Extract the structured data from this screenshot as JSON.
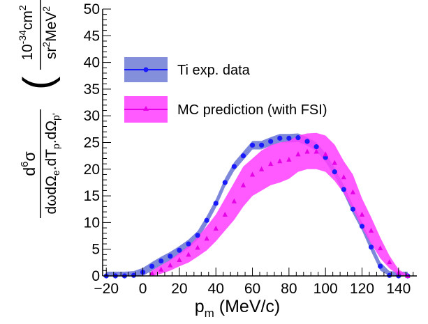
{
  "chart_data": {
    "type": "scatter",
    "title": "",
    "xlabel": {
      "base": "p",
      "sub": "m",
      "unit": " (MeV/c)"
    },
    "ylabel": {
      "frac_num": {
        "pre": "d",
        "sup": "6",
        "post": "σ"
      },
      "frac_den": {
        "p1": "dωdΩ",
        "s1": "e",
        "p2": ".dT",
        "s2": "p",
        "p3": ".dΩ",
        "s3": "p'"
      },
      "unit_num": {
        "pre": "10",
        "sup1": "-34",
        "mid": "cm",
        "sup2": "2"
      },
      "unit_den": {
        "pre": "sr",
        "sup1": "2",
        "post": "MeV",
        "sup2": "2"
      }
    },
    "xlim": [
      -22,
      150
    ],
    "ylim": [
      0,
      50
    ],
    "x_ticks": [
      -20,
      0,
      20,
      40,
      60,
      80,
      100,
      120,
      140
    ],
    "y_ticks": [
      0,
      5,
      10,
      15,
      20,
      25,
      30,
      35,
      40,
      45,
      50
    ],
    "legend_position": "top-left",
    "series": [
      {
        "name": "Ti exp. data",
        "color": "#1a1aff",
        "band_color": "#6f7bd6",
        "marker": "circle",
        "x": [
          -20,
          -15,
          -10,
          -5,
          0,
          5,
          10,
          15,
          20,
          25,
          30,
          35,
          40,
          45,
          50,
          55,
          60,
          65,
          70,
          75,
          80,
          85,
          90,
          95,
          100,
          105,
          110,
          115,
          120,
          125,
          130,
          135,
          140,
          145
        ],
        "y": [
          0,
          0,
          0,
          0.1,
          0.7,
          1.8,
          2.8,
          3.7,
          4.8,
          6.0,
          7.6,
          10.4,
          13.6,
          17.5,
          20.5,
          22.5,
          24.5,
          24.5,
          25.2,
          25.8,
          25.8,
          25.9,
          25.2,
          24.2,
          22.2,
          19.5,
          16.2,
          12.5,
          9.3,
          5.4,
          1.8,
          0.1,
          0,
          0
        ],
        "band_half_width": 0.8
      },
      {
        "name": "MC prediction (with FSI)",
        "color": "#e600e6",
        "band_color": "#ff3dff",
        "marker": "triangle",
        "x": [
          5,
          10,
          15,
          20,
          25,
          30,
          35,
          40,
          45,
          50,
          55,
          60,
          65,
          70,
          75,
          80,
          85,
          90,
          95,
          100,
          105,
          110,
          115,
          120,
          125,
          130,
          135,
          140,
          145
        ],
        "y": [
          0.5,
          1.2,
          2.0,
          3.0,
          4.0,
          5.3,
          7.0,
          8.9,
          11.5,
          14.0,
          17.0,
          19.0,
          20.0,
          21.0,
          21.5,
          21.8,
          22.8,
          23.3,
          23.3,
          22.8,
          21.2,
          18.5,
          15.7,
          11.5,
          8.5,
          5.2,
          2.6,
          0.6,
          0
        ],
        "band_lo": [
          0,
          0.4,
          1.0,
          1.8,
          2.5,
          3.6,
          4.8,
          6.5,
          8.5,
          10.5,
          13.0,
          15.0,
          16.0,
          17.0,
          17.5,
          18.2,
          19.5,
          20.0,
          20.0,
          19.5,
          17.8,
          15.5,
          12.5,
          9.0,
          6.0,
          3.3,
          1.4,
          0.2,
          0
        ],
        "band_hi": [
          1.0,
          2.0,
          3.0,
          4.3,
          5.6,
          7.3,
          9.3,
          11.5,
          14.5,
          17.5,
          20.5,
          22.0,
          23.5,
          24.5,
          25.0,
          25.3,
          26.3,
          26.7,
          26.8,
          26.3,
          24.6,
          21.5,
          19.0,
          14.5,
          11.0,
          7.2,
          3.8,
          1.2,
          0.2
        ]
      }
    ]
  }
}
